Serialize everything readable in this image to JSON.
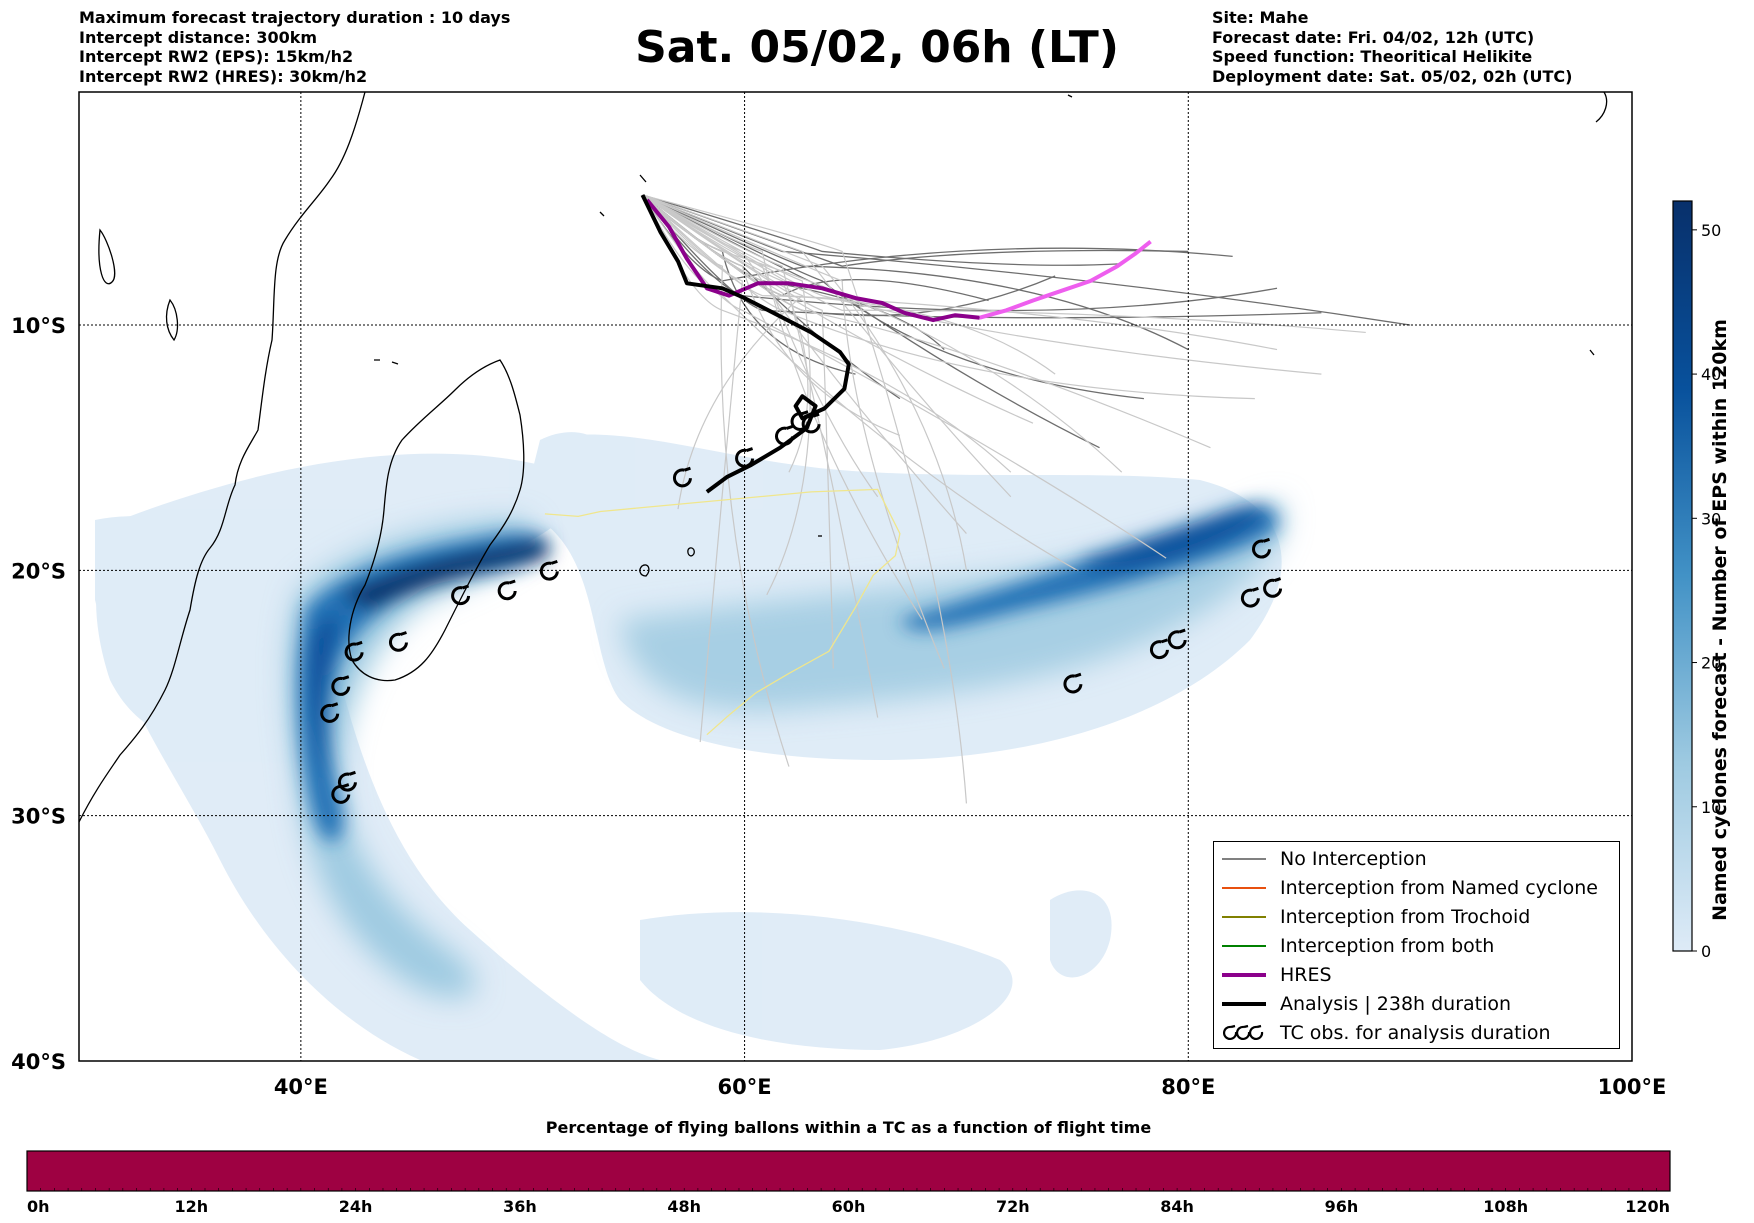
{
  "header": {
    "left_lines": [
      "Maximum forecast trajectory duration : 10 days",
      "Intercept distance: 300km",
      "Intercept RW2 (EPS):  15km/h2",
      "Intercept RW2 (HRES): 30km/h2"
    ],
    "title": "Sat. 05/02, 06h (LT)",
    "right_lines": [
      "Site: Mahe",
      "Forecast date: Fri. 04/02, 12h (UTC)",
      "Speed function: Theoritical Helikite",
      "Deployment date: Sat. 05/02, 02h (UTC)"
    ]
  },
  "map": {
    "lon_range": [
      30,
      100
    ],
    "lat_range": [
      -40,
      -0.5
    ],
    "lon_ticks": [
      {
        "value": 40,
        "label": "40°E"
      },
      {
        "value": 60,
        "label": "60°E"
      },
      {
        "value": 80,
        "label": "80°E"
      },
      {
        "value": 100,
        "label": "100°E"
      }
    ],
    "lat_ticks": [
      {
        "value": -10,
        "label": "10°S"
      },
      {
        "value": -20,
        "label": "20°S"
      },
      {
        "value": -30,
        "label": "30°S"
      },
      {
        "value": -40,
        "label": "40°S"
      }
    ],
    "density_colormap": [
      "#deebf7",
      "#9ecae1",
      "#4292c6",
      "#08519c",
      "#08306b"
    ]
  },
  "legend": {
    "items": [
      {
        "label": "No Interception",
        "color": "#808080",
        "kind": "thin"
      },
      {
        "label": "Interception from Named cyclone",
        "color": "#e8500f",
        "kind": "thin"
      },
      {
        "label": "Interception from Trochoid",
        "color": "#808000",
        "kind": "thin"
      },
      {
        "label": "Interception from both",
        "color": "#008000",
        "kind": "thin"
      },
      {
        "label": "HRES",
        "color": "#8b008b",
        "kind": "thick"
      },
      {
        "label": "Analysis | 238h duration",
        "color": "#000000",
        "kind": "thick"
      },
      {
        "label": "TC obs. for analysis duration",
        "color": "#000000",
        "kind": "tc"
      }
    ]
  },
  "colorbar": {
    "title": "Named cyclones forecast - Number of EPS within 120km",
    "ticks": [
      "0",
      "10",
      "20",
      "30",
      "40",
      "50"
    ],
    "max": 52
  },
  "bottom_bar": {
    "title": "Percentage of flying ballons within a TC as a function of flight time",
    "color": "#9e0142",
    "ticks": [
      "0h",
      "12h",
      "24h",
      "36h",
      "48h",
      "60h",
      "72h",
      "84h",
      "96h",
      "108h",
      "120h"
    ]
  },
  "tracks": {
    "analysis": [
      [
        55.4,
        -4.7
      ],
      [
        56.2,
        -6.2
      ],
      [
        57.0,
        -7.4
      ],
      [
        57.4,
        -8.3
      ],
      [
        58.2,
        -8.4
      ],
      [
        59.0,
        -8.5
      ],
      [
        60.0,
        -8.9
      ],
      [
        61.5,
        -9.6
      ],
      [
        63.0,
        -10.3
      ],
      [
        64.3,
        -11.1
      ],
      [
        64.7,
        -11.6
      ],
      [
        64.5,
        -12.6
      ],
      [
        63.6,
        -13.4
      ],
      [
        62.6,
        -13.8
      ],
      [
        62.3,
        -13.3
      ],
      [
        62.6,
        -12.9
      ],
      [
        63.2,
        -13.3
      ],
      [
        62.8,
        -14.2
      ],
      [
        61.6,
        -15.0
      ],
      [
        60.3,
        -15.7
      ],
      [
        59.2,
        -16.2
      ],
      [
        58.3,
        -16.8
      ]
    ],
    "hres": [
      [
        55.6,
        -4.9
      ],
      [
        56.6,
        -6.0
      ],
      [
        57.4,
        -7.3
      ],
      [
        58.3,
        -8.5
      ],
      [
        59.3,
        -8.8
      ],
      [
        60.6,
        -8.3
      ],
      [
        62.0,
        -8.3
      ],
      [
        63.5,
        -8.5
      ],
      [
        65.0,
        -8.9
      ],
      [
        66.2,
        -9.1
      ],
      [
        67.2,
        -9.5
      ],
      [
        68.5,
        -9.8
      ],
      [
        69.5,
        -9.6
      ],
      [
        70.6,
        -9.7
      ],
      [
        71.8,
        -9.4
      ],
      [
        73.0,
        -9.0
      ],
      [
        74.3,
        -8.6
      ],
      [
        75.6,
        -8.2
      ],
      [
        76.8,
        -7.6
      ],
      [
        77.6,
        -7.1
      ],
      [
        78.3,
        -6.6
      ]
    ],
    "eps_endpoints": [
      [
        65,
        -12
      ],
      [
        67,
        -13
      ],
      [
        69,
        -11
      ],
      [
        71,
        -9
      ],
      [
        74,
        -8
      ],
      [
        77,
        -7.5
      ],
      [
        80,
        -7
      ],
      [
        82,
        -7.2
      ],
      [
        84,
        -8.5
      ],
      [
        86,
        -9.5
      ],
      [
        90,
        -10
      ],
      [
        80,
        -11
      ],
      [
        78,
        -13
      ],
      [
        76,
        -15
      ],
      [
        72,
        -16
      ],
      [
        70,
        -18.5
      ],
      [
        66,
        -17
      ],
      [
        62,
        -16
      ],
      [
        57,
        -17.5
      ],
      [
        64,
        -24
      ],
      [
        70,
        -29.5
      ],
      [
        62,
        -28
      ],
      [
        58,
        -27
      ],
      [
        74,
        -12
      ],
      [
        83,
        -13
      ],
      [
        72,
        -17
      ],
      [
        70,
        -20
      ],
      [
        69,
        -24
      ],
      [
        75,
        -20
      ],
      [
        79,
        -19.5
      ],
      [
        68,
        -22
      ],
      [
        66,
        -26
      ],
      [
        61,
        -21
      ],
      [
        86,
        -12
      ],
      [
        88,
        -10.3
      ],
      [
        77,
        -16
      ],
      [
        67,
        -14.5
      ],
      [
        73,
        -14
      ],
      [
        84,
        -11
      ],
      [
        81,
        -15
      ]
    ],
    "yellow": [
      [
        51.0,
        -17.7
      ],
      [
        52.5,
        -17.8
      ],
      [
        53.5,
        -17.6
      ],
      [
        63.0,
        -16.8
      ],
      [
        66.0,
        -16.7
      ],
      [
        66.5,
        -17.6
      ],
      [
        67.0,
        -18.5
      ],
      [
        66.8,
        -19.4
      ],
      [
        65.8,
        -20.2
      ],
      [
        65.0,
        -21.5
      ],
      [
        63.8,
        -23.3
      ],
      [
        62.0,
        -24.2
      ],
      [
        60.5,
        -25.0
      ],
      [
        59.3,
        -25.9
      ],
      [
        58.3,
        -26.7
      ]
    ]
  },
  "tc_obs": [
    [
      57.2,
      -16.2
    ],
    [
      60.0,
      -15.4
    ],
    [
      61.8,
      -14.5
    ],
    [
      62.5,
      -13.9
    ],
    [
      63.0,
      -14.0
    ],
    [
      51.2,
      -20.0
    ],
    [
      49.3,
      -20.8
    ],
    [
      47.2,
      -21.0
    ],
    [
      44.4,
      -22.9
    ],
    [
      42.4,
      -23.3
    ],
    [
      41.8,
      -24.7
    ],
    [
      41.3,
      -25.8
    ],
    [
      42.1,
      -28.6
    ],
    [
      41.8,
      -29.1
    ],
    [
      74.8,
      -24.6
    ],
    [
      78.7,
      -23.2
    ],
    [
      79.5,
      -22.8
    ],
    [
      82.8,
      -21.1
    ],
    [
      83.8,
      -20.7
    ],
    [
      83.3,
      -19.1
    ]
  ]
}
